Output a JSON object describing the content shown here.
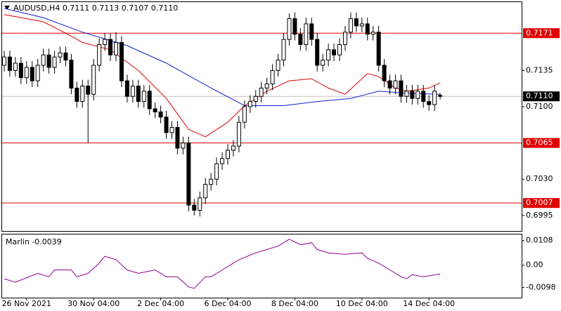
{
  "chart_data": {
    "type": "candlestick",
    "title": "AUDUSD,H4  0.7111 0.7113 0.7107 0.7110",
    "categories": [
      null,
      null,
      null,
      null,
      "26 Nov 2021",
      null,
      null,
      null,
      null,
      null,
      null,
      null,
      null,
      null,
      null,
      null,
      "30 Nov 04:00",
      null,
      null,
      null,
      null,
      null,
      null,
      null,
      null,
      null,
      null,
      null,
      "2 Dec 04:00",
      null,
      null,
      null,
      null,
      null,
      null,
      null,
      null,
      null,
      null,
      null,
      "6 Dec 04:00",
      null,
      null,
      null,
      null,
      null,
      null,
      null,
      null,
      null,
      null,
      null,
      "8 Dec 04:00",
      null,
      null,
      null,
      null,
      null,
      null,
      null,
      null,
      null,
      null,
      null,
      "10 Dec 04:00",
      null,
      null,
      null,
      null,
      null,
      null,
      null,
      null,
      null,
      null,
      null,
      "14 Dec 04:00",
      null,
      null
    ],
    "open": [
      0.714,
      0.7148,
      0.7135,
      0.7142,
      0.7128,
      0.7138,
      0.7125,
      0.714,
      0.715,
      0.7138,
      0.7148,
      0.7152,
      0.7145,
      0.7118,
      0.7105,
      0.712,
      0.7112,
      0.714,
      0.716,
      0.7165,
      0.715,
      0.7162,
      0.7125,
      0.711,
      0.712,
      0.7105,
      0.7115,
      0.7098,
      0.7095,
      0.709,
      0.7075,
      0.708,
      0.706,
      0.7065,
      0.7005,
      0.7,
      0.7012,
      0.7025,
      0.703,
      0.7045,
      0.705,
      0.7058,
      0.7062,
      0.7085,
      0.71,
      0.7105,
      0.711,
      0.7118,
      0.7122,
      0.7135,
      0.7145,
      0.7165,
      0.7185,
      0.717,
      0.716,
      0.718,
      0.7165,
      0.714,
      0.7145,
      0.7155,
      0.715,
      0.716,
      0.7172,
      0.7185,
      0.7178,
      0.718,
      0.717,
      0.7172,
      0.714,
      0.7125,
      0.7118,
      0.7125,
      0.711,
      0.7115,
      0.7108,
      0.7115,
      0.7105,
      0.7102,
      0.7111
    ],
    "high": [
      0.7154,
      0.7154,
      0.7148,
      0.7148,
      0.7144,
      0.7144,
      0.7146,
      0.7156,
      0.7156,
      0.7154,
      0.7158,
      0.7158,
      0.7151,
      0.7124,
      0.7126,
      0.7126,
      0.7146,
      0.7166,
      0.7171,
      0.7171,
      0.7172,
      0.7168,
      0.7131,
      0.7126,
      0.7126,
      0.7121,
      0.7121,
      0.7104,
      0.7101,
      0.7096,
      0.7086,
      0.7086,
      0.7071,
      0.7071,
      0.7011,
      0.7018,
      0.7031,
      0.7036,
      0.7051,
      0.7056,
      0.7064,
      0.7068,
      0.7091,
      0.7106,
      0.7111,
      0.7116,
      0.7124,
      0.7128,
      0.7141,
      0.7151,
      0.7171,
      0.719,
      0.7191,
      0.7176,
      0.7186,
      0.7186,
      0.7171,
      0.7151,
      0.7161,
      0.7161,
      0.7166,
      0.7178,
      0.7191,
      0.7191,
      0.7186,
      0.7186,
      0.7178,
      0.7178,
      0.7146,
      0.7131,
      0.7131,
      0.7131,
      0.7121,
      0.7121,
      0.7121,
      0.7121,
      0.7111,
      0.7121,
      0.7113
    ],
    "low": [
      0.7134,
      0.7129,
      0.7129,
      0.7122,
      0.7122,
      0.7119,
      0.7119,
      0.7134,
      0.7132,
      0.7132,
      0.7142,
      0.7139,
      0.7112,
      0.7099,
      0.7099,
      0.7065,
      0.7106,
      0.7134,
      0.7154,
      0.7144,
      0.7144,
      0.7119,
      0.7104,
      0.7104,
      0.7099,
      0.7099,
      0.7092,
      0.7089,
      0.7084,
      0.7069,
      0.7069,
      0.7054,
      0.7054,
      0.6999,
      0.6995,
      0.6994,
      0.7006,
      0.7019,
      0.7024,
      0.7039,
      0.7044,
      0.7052,
      0.7056,
      0.7079,
      0.7094,
      0.7099,
      0.7104,
      0.7112,
      0.7116,
      0.7129,
      0.7139,
      0.7159,
      0.7164,
      0.7154,
      0.7154,
      0.7159,
      0.7134,
      0.7134,
      0.7139,
      0.7144,
      0.7144,
      0.7154,
      0.7166,
      0.7172,
      0.7172,
      0.7164,
      0.7164,
      0.7134,
      0.7119,
      0.7112,
      0.7112,
      0.7104,
      0.7104,
      0.7102,
      0.7102,
      0.7099,
      0.7096,
      0.7096,
      0.7107
    ],
    "close": [
      0.7148,
      0.7135,
      0.7142,
      0.7128,
      0.7138,
      0.7125,
      0.714,
      0.715,
      0.7138,
      0.7148,
      0.7152,
      0.7145,
      0.7118,
      0.7105,
      0.712,
      0.7112,
      0.714,
      0.716,
      0.7165,
      0.715,
      0.7162,
      0.7125,
      0.711,
      0.712,
      0.7105,
      0.7115,
      0.7098,
      0.7095,
      0.709,
      0.7075,
      0.708,
      0.706,
      0.7065,
      0.7005,
      0.7,
      0.7012,
      0.7025,
      0.703,
      0.7045,
      0.705,
      0.7058,
      0.7062,
      0.7085,
      0.71,
      0.7105,
      0.711,
      0.7118,
      0.7122,
      0.7135,
      0.7145,
      0.7165,
      0.7185,
      0.717,
      0.716,
      0.718,
      0.7165,
      0.714,
      0.7145,
      0.7155,
      0.715,
      0.716,
      0.7172,
      0.7185,
      0.7178,
      0.718,
      0.717,
      0.7172,
      0.714,
      0.7125,
      0.7118,
      0.7125,
      0.711,
      0.7115,
      0.7108,
      0.7115,
      0.7105,
      0.7102,
      0.7115,
      0.711
    ],
    "lines": [
      {
        "color": "#e00000",
        "x": [
          0,
          7,
          11,
          14,
          19,
          24,
          29,
          33,
          36,
          40,
          43,
          47,
          51,
          55,
          58,
          61,
          65,
          67,
          70,
          72,
          76,
          78
        ],
        "values": [
          0.7189,
          0.7182,
          0.7171,
          0.7162,
          0.7155,
          0.7135,
          0.7108,
          0.7078,
          0.7071,
          0.7085,
          0.7101,
          0.7115,
          0.7125,
          0.7127,
          0.7118,
          0.7112,
          0.7132,
          0.7129,
          0.7118,
          0.7115,
          0.7118,
          0.7123
        ]
      },
      {
        "color": "#1020d0",
        "x": [
          0,
          7,
          14,
          22,
          29,
          37,
          43,
          50,
          56,
          62,
          67,
          72,
          78
        ],
        "values": [
          0.7195,
          0.7186,
          0.7172,
          0.7159,
          0.7142,
          0.7118,
          0.7101,
          0.7101,
          0.7105,
          0.7108,
          0.7115,
          0.7113,
          0.7112
        ]
      }
    ],
    "levels": [
      0.7171,
      0.7065,
      0.7007
    ],
    "level_color": "#e00000",
    "current_price": {
      "value": 0.711,
      "label": "0.7110"
    },
    "ylim": [
      0.698,
      0.7201
    ],
    "yticks": [
      0.7135,
      {
        "value": 0.71,
        "label": "0.7100"
      },
      {
        "value": 0.703,
        "label": "0.7030"
      },
      0.6995
    ],
    "oscillator": {
      "label": "Marlin -0.0039",
      "color": "#900090",
      "x": [
        0,
        2,
        6,
        8,
        9,
        12,
        13,
        15,
        17,
        18,
        20,
        22,
        24,
        27,
        29,
        31,
        33,
        34,
        36,
        37,
        39,
        42,
        45,
        47,
        49,
        51,
        53,
        55,
        56,
        58,
        61,
        64,
        65,
        67,
        69,
        71,
        72,
        73,
        75,
        78
      ],
      "values": [
        -0.006,
        -0.0075,
        -0.0036,
        -0.0051,
        -0.0021,
        -0.0021,
        -0.0051,
        -0.0036,
        0.0009,
        0.0039,
        0.0024,
        -0.0021,
        -0.0036,
        -0.0021,
        -0.0051,
        -0.0051,
        -0.0096,
        -0.0102,
        -0.0051,
        -0.0051,
        -0.0021,
        0.0024,
        0.0054,
        0.0069,
        0.0084,
        0.0114,
        0.009,
        0.0099,
        0.0069,
        0.0054,
        0.0048,
        0.0054,
        0.003,
        0.0009,
        -0.0021,
        -0.0051,
        -0.006,
        -0.0042,
        -0.0051,
        -0.0039
      ],
      "ylim": [
        -0.0143,
        0.0135
      ],
      "yticks": [
        0.0108,
        {
          "value": 0,
          "label": "0.00"
        },
        -0.0098
      ]
    }
  }
}
